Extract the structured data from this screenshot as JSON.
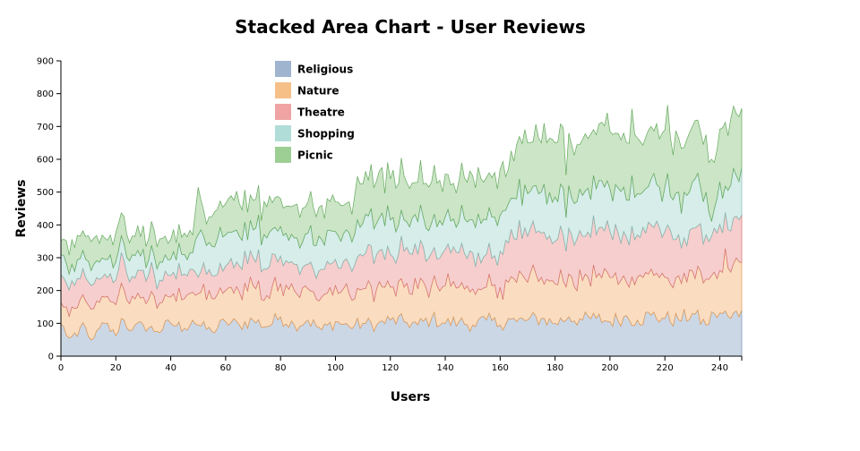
{
  "chart_data": {
    "type": "area",
    "stacked": true,
    "title": "Stacked Area Chart - User Reviews",
    "xlabel": "Users",
    "ylabel": "Reviews",
    "xlim": [
      0,
      248
    ],
    "ylim": [
      0,
      900
    ],
    "x_ticks": [
      0,
      20,
      40,
      60,
      80,
      100,
      120,
      140,
      160,
      180,
      200,
      220,
      240
    ],
    "y_ticks": [
      0,
      100,
      200,
      300,
      400,
      500,
      600,
      700,
      800,
      900
    ],
    "legend_position": "top-left",
    "x_step": 1,
    "num_points": 249,
    "series": [
      {
        "name": "Religious",
        "fill": "#9ab0cc",
        "stroke": "#7b93b3",
        "keypoints": [
          [
            0,
            98
          ],
          [
            3,
            55
          ],
          [
            6,
            60
          ],
          [
            8,
            102
          ],
          [
            10,
            60
          ],
          [
            12,
            55
          ],
          [
            16,
            100
          ],
          [
            20,
            62
          ],
          [
            22,
            115
          ],
          [
            26,
            80
          ],
          [
            30,
            95
          ],
          [
            35,
            75
          ],
          [
            40,
            100
          ],
          [
            45,
            85
          ],
          [
            48,
            110
          ],
          [
            50,
            95
          ],
          [
            55,
            75
          ],
          [
            60,
            105
          ],
          [
            65,
            95
          ],
          [
            70,
            110
          ],
          [
            75,
            90
          ],
          [
            80,
            120
          ],
          [
            85,
            95
          ],
          [
            90,
            110
          ],
          [
            95,
            80
          ],
          [
            100,
            105
          ],
          [
            105,
            90
          ],
          [
            110,
            100
          ],
          [
            115,
            95
          ],
          [
            120,
            110
          ],
          [
            125,
            105
          ],
          [
            130,
            95
          ],
          [
            135,
            115
          ],
          [
            140,
            100
          ],
          [
            145,
            105
          ],
          [
            150,
            95
          ],
          [
            155,
            110
          ],
          [
            160,
            95
          ],
          [
            163,
            115
          ],
          [
            166,
            105
          ],
          [
            170,
            110
          ],
          [
            175,
            115
          ],
          [
            180,
            100
          ],
          [
            185,
            120
          ],
          [
            190,
            110
          ],
          [
            195,
            115
          ],
          [
            200,
            105
          ],
          [
            205,
            120
          ],
          [
            210,
            110
          ],
          [
            215,
            125
          ],
          [
            220,
            115
          ],
          [
            225,
            110
          ],
          [
            230,
            130
          ],
          [
            235,
            95
          ],
          [
            238,
            130
          ],
          [
            241,
            130
          ],
          [
            244,
            115
          ],
          [
            248,
            140
          ]
        ]
      },
      {
        "name": "Nature",
        "fill": "#f6bc82",
        "stroke": "#e79c55",
        "keypoints": [
          [
            0,
            65
          ],
          [
            4,
            90
          ],
          [
            8,
            85
          ],
          [
            12,
            90
          ],
          [
            16,
            80
          ],
          [
            20,
            95
          ],
          [
            24,
            85
          ],
          [
            28,
            90
          ],
          [
            32,
            88
          ],
          [
            36,
            90
          ],
          [
            40,
            80
          ],
          [
            45,
            90
          ],
          [
            48,
            85
          ],
          [
            50,
            95
          ],
          [
            55,
            100
          ],
          [
            60,
            95
          ],
          [
            65,
            100
          ],
          [
            70,
            105
          ],
          [
            75,
            95
          ],
          [
            80,
            100
          ],
          [
            85,
            105
          ],
          [
            90,
            95
          ],
          [
            95,
            100
          ],
          [
            100,
            110
          ],
          [
            105,
            100
          ],
          [
            110,
            105
          ],
          [
            115,
            110
          ],
          [
            120,
            100
          ],
          [
            125,
            105
          ],
          [
            130,
            110
          ],
          [
            135,
            100
          ],
          [
            140,
            115
          ],
          [
            145,
            105
          ],
          [
            150,
            110
          ],
          [
            155,
            100
          ],
          [
            160,
            115
          ],
          [
            163,
            110
          ],
          [
            166,
            120
          ],
          [
            170,
            115
          ],
          [
            175,
            125
          ],
          [
            180,
            120
          ],
          [
            185,
            130
          ],
          [
            190,
            120
          ],
          [
            195,
            125
          ],
          [
            200,
            135
          ],
          [
            205,
            125
          ],
          [
            210,
            130
          ],
          [
            215,
            140
          ],
          [
            220,
            125
          ],
          [
            225,
            135
          ],
          [
            230,
            130
          ],
          [
            235,
            140
          ],
          [
            237,
            110
          ],
          [
            240,
            130
          ],
          [
            242,
            190
          ],
          [
            245,
            150
          ],
          [
            248,
            145
          ]
        ]
      },
      {
        "name": "Theatre",
        "fill": "#ee9e9e",
        "stroke": "#d57474",
        "keypoints": [
          [
            0,
            85
          ],
          [
            4,
            80
          ],
          [
            8,
            80
          ],
          [
            12,
            75
          ],
          [
            16,
            70
          ],
          [
            20,
            75
          ],
          [
            24,
            80
          ],
          [
            28,
            70
          ],
          [
            32,
            75
          ],
          [
            36,
            70
          ],
          [
            40,
            65
          ],
          [
            45,
            75
          ],
          [
            48,
            70
          ],
          [
            50,
            50
          ],
          [
            52,
            65
          ],
          [
            55,
            70
          ],
          [
            60,
            75
          ],
          [
            65,
            80
          ],
          [
            70,
            85
          ],
          [
            75,
            80
          ],
          [
            80,
            85
          ],
          [
            85,
            80
          ],
          [
            90,
            75
          ],
          [
            95,
            85
          ],
          [
            100,
            80
          ],
          [
            105,
            90
          ],
          [
            110,
            100
          ],
          [
            115,
            105
          ],
          [
            120,
            100
          ],
          [
            125,
            110
          ],
          [
            130,
            105
          ],
          [
            135,
            100
          ],
          [
            140,
            110
          ],
          [
            145,
            105
          ],
          [
            150,
            110
          ],
          [
            155,
            100
          ],
          [
            160,
            110
          ],
          [
            163,
            120
          ],
          [
            166,
            130
          ],
          [
            170,
            140
          ],
          [
            175,
            135
          ],
          [
            180,
            130
          ],
          [
            185,
            140
          ],
          [
            190,
            135
          ],
          [
            195,
            130
          ],
          [
            200,
            140
          ],
          [
            205,
            135
          ],
          [
            210,
            130
          ],
          [
            215,
            135
          ],
          [
            220,
            140
          ],
          [
            225,
            125
          ],
          [
            230,
            130
          ],
          [
            235,
            135
          ],
          [
            237,
            120
          ],
          [
            240,
            140
          ],
          [
            242,
            110
          ],
          [
            245,
            140
          ],
          [
            248,
            145
          ]
        ]
      },
      {
        "name": "Shopping",
        "fill": "#addbd6",
        "stroke": "#80bab3",
        "keypoints": [
          [
            0,
            60
          ],
          [
            4,
            50
          ],
          [
            8,
            55
          ],
          [
            12,
            60
          ],
          [
            16,
            45
          ],
          [
            20,
            55
          ],
          [
            24,
            50
          ],
          [
            28,
            60
          ],
          [
            32,
            45
          ],
          [
            36,
            55
          ],
          [
            40,
            50
          ],
          [
            45,
            60
          ],
          [
            48,
            50
          ],
          [
            50,
            130
          ],
          [
            52,
            80
          ],
          [
            55,
            90
          ],
          [
            60,
            95
          ],
          [
            65,
            90
          ],
          [
            70,
            85
          ],
          [
            75,
            95
          ],
          [
            80,
            90
          ],
          [
            85,
            80
          ],
          [
            90,
            95
          ],
          [
            95,
            90
          ],
          [
            100,
            85
          ],
          [
            105,
            95
          ],
          [
            110,
            100
          ],
          [
            115,
            95
          ],
          [
            120,
            105
          ],
          [
            125,
            95
          ],
          [
            130,
            100
          ],
          [
            135,
            90
          ],
          [
            140,
            100
          ],
          [
            145,
            95
          ],
          [
            150,
            100
          ],
          [
            155,
            105
          ],
          [
            160,
            110
          ],
          [
            163,
            120
          ],
          [
            166,
            125
          ],
          [
            170,
            130
          ],
          [
            175,
            125
          ],
          [
            180,
            135
          ],
          [
            185,
            130
          ],
          [
            190,
            125
          ],
          [
            195,
            140
          ],
          [
            200,
            130
          ],
          [
            205,
            135
          ],
          [
            210,
            125
          ],
          [
            215,
            140
          ],
          [
            220,
            135
          ],
          [
            225,
            130
          ],
          [
            230,
            140
          ],
          [
            235,
            130
          ],
          [
            237,
            45
          ],
          [
            240,
            130
          ],
          [
            242,
            80
          ],
          [
            245,
            150
          ],
          [
            248,
            145
          ]
        ]
      },
      {
        "name": "Picnic",
        "fill": "#98cc8e",
        "stroke": "#65a95d",
        "keypoints": [
          [
            0,
            45
          ],
          [
            4,
            75
          ],
          [
            8,
            60
          ],
          [
            12,
            80
          ],
          [
            16,
            65
          ],
          [
            20,
            90
          ],
          [
            24,
            70
          ],
          [
            28,
            75
          ],
          [
            32,
            65
          ],
          [
            36,
            70
          ],
          [
            40,
            60
          ],
          [
            45,
            65
          ],
          [
            48,
            55
          ],
          [
            50,
            145
          ],
          [
            52,
            80
          ],
          [
            55,
            90
          ],
          [
            60,
            95
          ],
          [
            65,
            100
          ],
          [
            70,
            90
          ],
          [
            75,
            95
          ],
          [
            80,
            85
          ],
          [
            85,
            100
          ],
          [
            90,
            95
          ],
          [
            95,
            105
          ],
          [
            100,
            90
          ],
          [
            105,
            95
          ],
          [
            110,
            120
          ],
          [
            115,
            130
          ],
          [
            120,
            125
          ],
          [
            125,
            135
          ],
          [
            130,
            120
          ],
          [
            135,
            125
          ],
          [
            140,
            130
          ],
          [
            145,
            125
          ],
          [
            150,
            135
          ],
          [
            155,
            130
          ],
          [
            160,
            140
          ],
          [
            163,
            105
          ],
          [
            166,
            165
          ],
          [
            170,
            155
          ],
          [
            175,
            150
          ],
          [
            180,
            165
          ],
          [
            185,
            160
          ],
          [
            190,
            170
          ],
          [
            195,
            165
          ],
          [
            200,
            175
          ],
          [
            205,
            165
          ],
          [
            210,
            170
          ],
          [
            215,
            160
          ],
          [
            220,
            175
          ],
          [
            225,
            165
          ],
          [
            230,
            170
          ],
          [
            235,
            175
          ],
          [
            237,
            190
          ],
          [
            240,
            160
          ],
          [
            242,
            195
          ],
          [
            245,
            190
          ],
          [
            248,
            180
          ]
        ]
      }
    ]
  }
}
